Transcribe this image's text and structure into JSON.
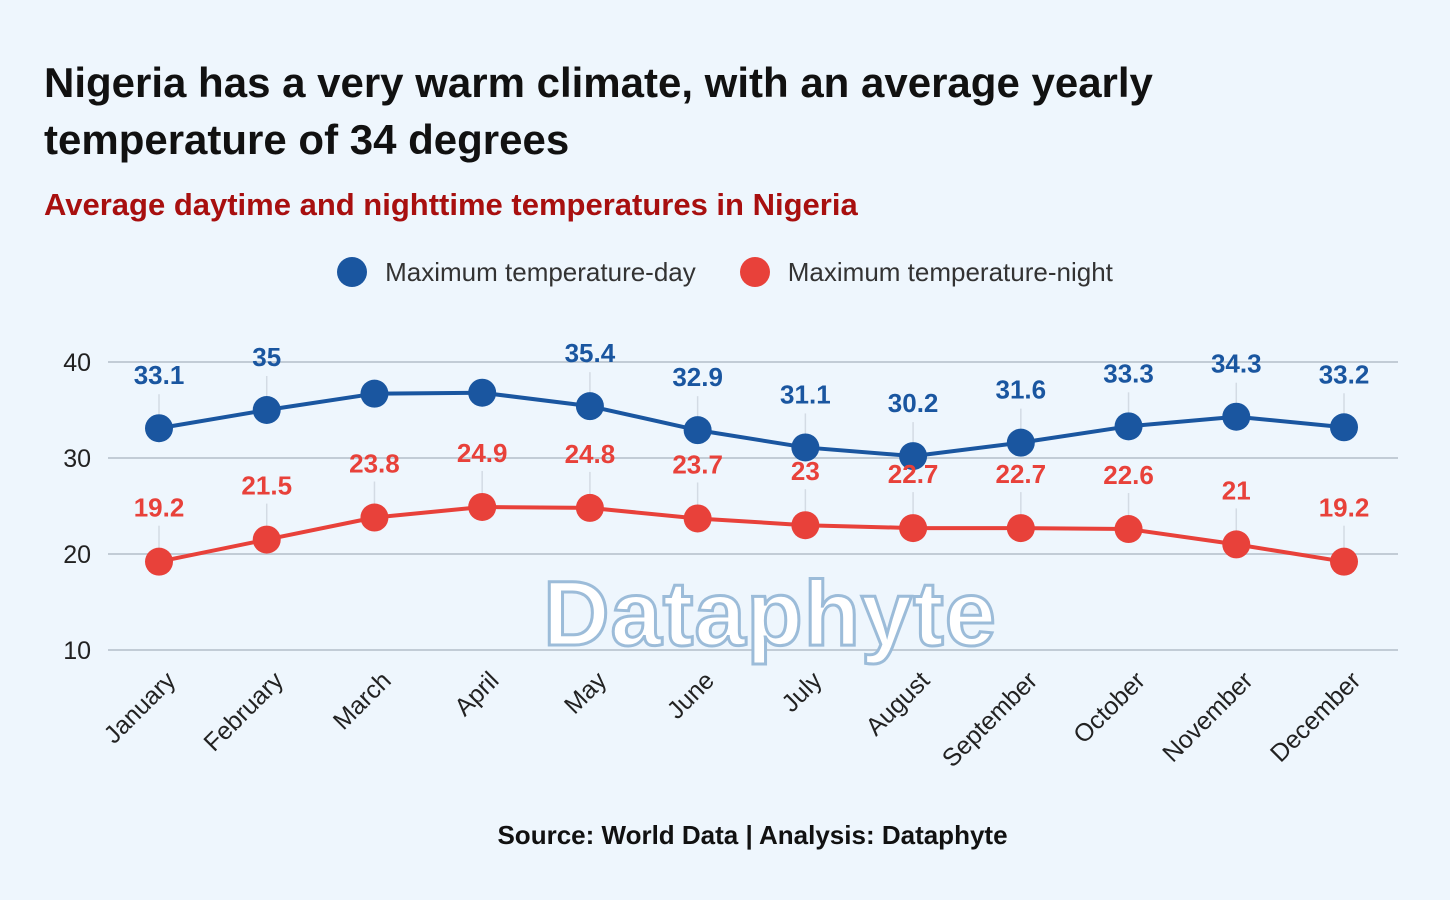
{
  "header": {
    "title": "Nigeria has a very warm climate, with an average yearly temperature of 34 degrees",
    "subtitle": "Average daytime and nighttime temperatures in Nigeria",
    "subtitle_color": "#a80f0f"
  },
  "footer": {
    "source": "Source: World Data | Analysis: Dataphyte"
  },
  "watermark": {
    "text": "Dataphyte"
  },
  "chart_data": {
    "type": "line",
    "title": "Nigeria has a very warm climate, with an average yearly temperature of 34 degrees",
    "subtitle": "Average daytime and nighttime temperatures in Nigeria",
    "categories": [
      "January",
      "February",
      "March",
      "April",
      "May",
      "June",
      "July",
      "August",
      "September",
      "October",
      "November",
      "December"
    ],
    "series": [
      {
        "name": "Maximum temperature-day",
        "color": "#1a56a0",
        "values": [
          33.1,
          35,
          36.7,
          36.8,
          35.4,
          32.9,
          31.1,
          30.2,
          31.6,
          33.3,
          34.3,
          33.2
        ],
        "labels": [
          "33.1",
          "35",
          "",
          "",
          "35.4",
          "32.9",
          "31.1",
          "30.2",
          "31.6",
          "33.3",
          "34.3",
          "33.2"
        ]
      },
      {
        "name": "Maximum temperature-night",
        "color": "#e8413a",
        "values": [
          19.2,
          21.5,
          23.8,
          24.9,
          24.8,
          23.7,
          23,
          22.7,
          22.7,
          22.6,
          21,
          19.2
        ],
        "labels": [
          "19.2",
          "21.5",
          "23.8",
          "24.9",
          "24.8",
          "23.7",
          "23",
          "22.7",
          "22.7",
          "22.6",
          "21",
          "19.2"
        ]
      }
    ],
    "yticks": [
      10,
      20,
      30,
      40
    ],
    "ylim": [
      10,
      40
    ],
    "xlabel": "",
    "ylabel": "",
    "grid": true,
    "legend": "top-center"
  }
}
